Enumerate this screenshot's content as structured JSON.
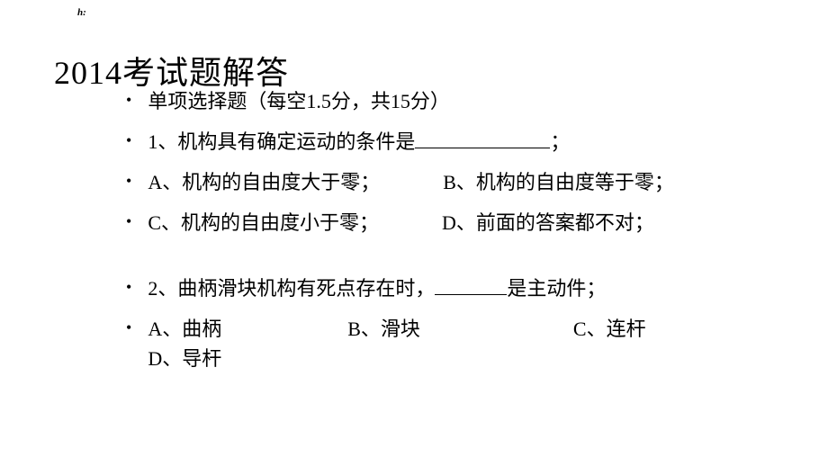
{
  "small_mark": "h:",
  "title": "2014考试题解答",
  "lines": {
    "instruction": "单项选择题（每空1.5分，共15分）",
    "q1_stem_before": "1、机构具有确定运动的条件是",
    "q1_stem_after": "；",
    "q1_optA": "A、机构的自由度大于零；",
    "q1_optB": "B、机构的自由度等于零；",
    "q1_optC": "C、机构的自由度小于零；",
    "q1_optD": "D、前面的答案都不对；",
    "q2_stem_before": "2、曲柄滑块机构有死点存在时，",
    "q2_stem_after": "是主动件；",
    "q2_optA": "A、曲柄",
    "q2_optB": "B、滑块",
    "q2_optC": "C、连杆",
    "q2_optD": "D、导杆"
  },
  "colors": {
    "background": "#ffffff",
    "text": "#000000"
  },
  "fonts": {
    "title_size": 36,
    "body_size": 22,
    "small_mark_size": 11
  }
}
